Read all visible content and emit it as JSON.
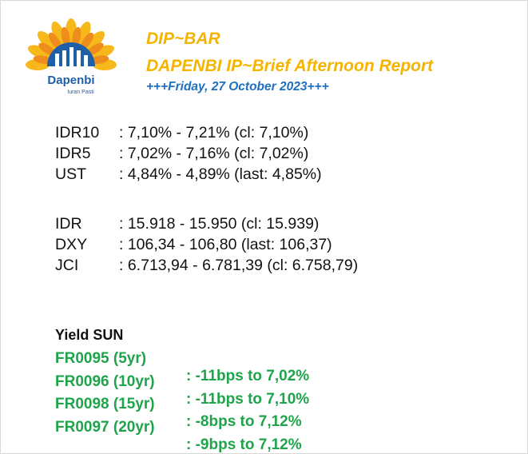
{
  "logo": {
    "name": "Dapenbi",
    "tagline": "Iuran Pasti"
  },
  "header": {
    "title": "DIP~BAR",
    "subtitle": "DAPENBI IP~Brief Afternoon Report",
    "date": "+++Friday, 27 October 2023+++"
  },
  "markets": [
    [
      {
        "label": "IDR10",
        "value": ": 7,10% - 7,21% (cl: 7,10%)"
      },
      {
        "label": "IDR5",
        "value": ": 7,02% - 7,16% (cl: 7,02%)"
      },
      {
        "label": "UST",
        "value": ": 4,84% - 4,89% (last: 4,85%)"
      }
    ],
    [
      {
        "label": "IDR",
        "value": ": 15.918 - 15.950 (cl: 15.939)"
      },
      {
        "label": "DXY",
        "value": ": 106,34 - 106,80 (last: 106,37)"
      },
      {
        "label": "JCI",
        "value": ": 6.713,94 - 6.781,39 (cl: 6.758,79)"
      }
    ]
  ],
  "yield": {
    "title": "Yield SUN",
    "rows": [
      {
        "label": "FR0095 (5yr)",
        "value": ": -11bps to 7,02%"
      },
      {
        "label": "FR0096 (10yr)",
        "value": ": -11bps to 7,10%"
      },
      {
        "label": "FR0098 (15yr)",
        "value": ": -8bps to 7,12%"
      },
      {
        "label": "FR0097 (20yr)",
        "value": ": -9bps to 7,12%"
      }
    ]
  }
}
